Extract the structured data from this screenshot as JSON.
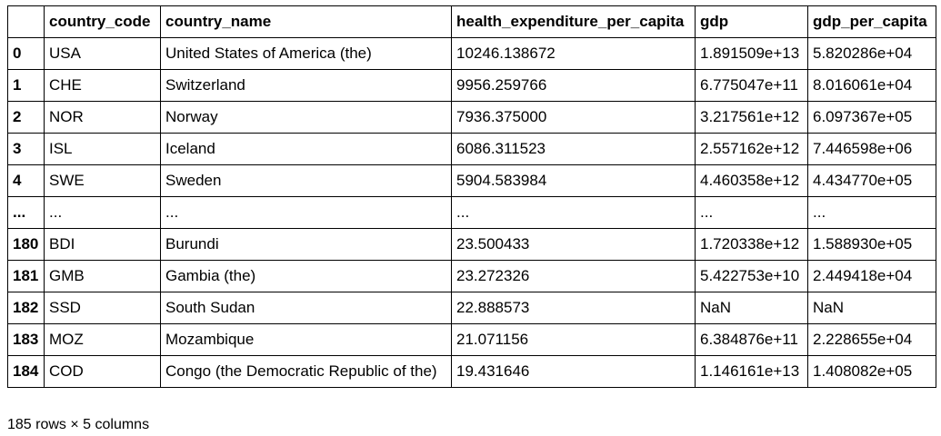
{
  "table": {
    "columns": [
      "",
      "country_code",
      "country_name",
      "health_expenditure_per_capita",
      "gdp",
      "gdp_per_capita"
    ],
    "rows": [
      {
        "index": "0",
        "cells": [
          "USA",
          "United States of America (the)",
          "10246.138672",
          "1.891509e+13",
          "5.820286e+04"
        ]
      },
      {
        "index": "1",
        "cells": [
          "CHE",
          "Switzerland",
          "9956.259766",
          "6.775047e+11",
          "8.016061e+04"
        ]
      },
      {
        "index": "2",
        "cells": [
          "NOR",
          "Norway",
          "7936.375000",
          "3.217561e+12",
          "6.097367e+05"
        ]
      },
      {
        "index": "3",
        "cells": [
          "ISL",
          "Iceland",
          "6086.311523",
          "2.557162e+12",
          "7.446598e+06"
        ]
      },
      {
        "index": "4",
        "cells": [
          "SWE",
          "Sweden",
          "5904.583984",
          "4.460358e+12",
          "4.434770e+05"
        ]
      },
      {
        "index": "...",
        "cells": [
          "...",
          "...",
          "...",
          "...",
          "..."
        ]
      },
      {
        "index": "180",
        "cells": [
          "BDI",
          "Burundi",
          "23.500433",
          "1.720338e+12",
          "1.588930e+05"
        ]
      },
      {
        "index": "181",
        "cells": [
          "GMB",
          "Gambia (the)",
          "23.272326",
          "5.422753e+10",
          "2.449418e+04"
        ]
      },
      {
        "index": "182",
        "cells": [
          "SSD",
          "South Sudan",
          "22.888573",
          "NaN",
          "NaN"
        ]
      },
      {
        "index": "183",
        "cells": [
          "MOZ",
          "Mozambique",
          "21.071156",
          "6.384876e+11",
          "2.228655e+04"
        ]
      },
      {
        "index": "184",
        "cells": [
          "COD",
          "Congo (the Democratic Republic of the)",
          "19.431646",
          "1.146161e+13",
          "1.408082e+05"
        ]
      }
    ]
  },
  "footer": {
    "shape_text": "185 rows × 5 columns"
  }
}
